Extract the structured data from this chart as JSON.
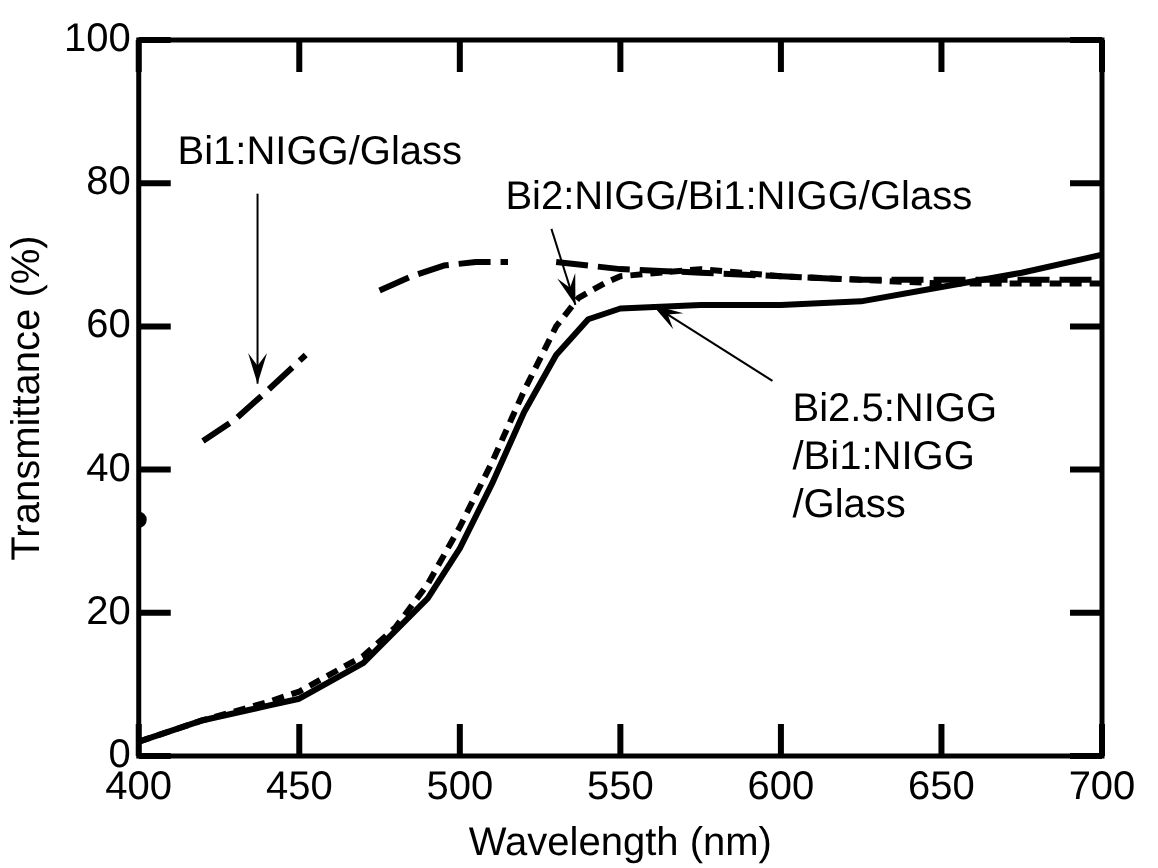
{
  "chart_data": {
    "type": "line",
    "xlabel": "Wavelength (nm)",
    "ylabel": "Transmittance (%)",
    "xlim": [
      400,
      700
    ],
    "ylim": [
      0,
      100
    ],
    "xticks": [
      400,
      450,
      500,
      550,
      600,
      650,
      700
    ],
    "yticks": [
      0,
      20,
      40,
      60,
      80,
      100
    ],
    "grid": false,
    "legend": false,
    "marker": "none",
    "series": [
      {
        "color": "#000000",
        "line_style": "dashed",
        "x": [
          400,
          401,
          410,
          420,
          430,
          440,
          452,
          460,
          475,
          485,
          495,
          505,
          515,
          520,
          530,
          540,
          550,
          575,
          600,
          625,
          650,
          675,
          700
        ],
        "values": [
          33,
          null,
          null,
          44,
          47,
          51,
          56,
          null,
          65,
          67,
          68.5,
          69,
          69,
          null,
          69,
          68.5,
          68,
          67.5,
          67,
          66.5,
          66.5,
          66.5,
          66.5
        ]
      },
      {
        "color": "#000000",
        "line_style": "dotted",
        "x": [
          400,
          420,
          440,
          450,
          470,
          480,
          490,
          500,
          510,
          520,
          530,
          537,
          545,
          550,
          575,
          600,
          625,
          650,
          675,
          700
        ],
        "values": [
          2,
          5,
          7.5,
          9,
          14,
          18,
          24,
          32,
          41,
          51,
          60,
          64,
          66,
          67,
          68,
          67,
          66.5,
          66,
          66,
          66
        ]
      },
      {
        "color": "#000000",
        "line_style": "solid",
        "x": [
          400,
          420,
          440,
          450,
          470,
          490,
          500,
          510,
          520,
          530,
          540,
          550,
          575,
          600,
          625,
          650,
          675,
          700
        ],
        "values": [
          2,
          5,
          7,
          8,
          13,
          22,
          29,
          38,
          48,
          56,
          61,
          62.5,
          63,
          63,
          63.5,
          65.5,
          67.5,
          70
        ]
      }
    ],
    "annotations": [
      {
        "text": "Bi1:NIGG/Glass",
        "x": 437,
        "y": 52
      },
      {
        "text": "Bi2:NIGG/Bi1:NIGG/Glass",
        "x": 536,
        "y": 63
      },
      {
        "text": "Bi2.5:NIGG\n/Bi1:NIGG\n/Glass",
        "x": 560,
        "y": 63
      }
    ]
  }
}
